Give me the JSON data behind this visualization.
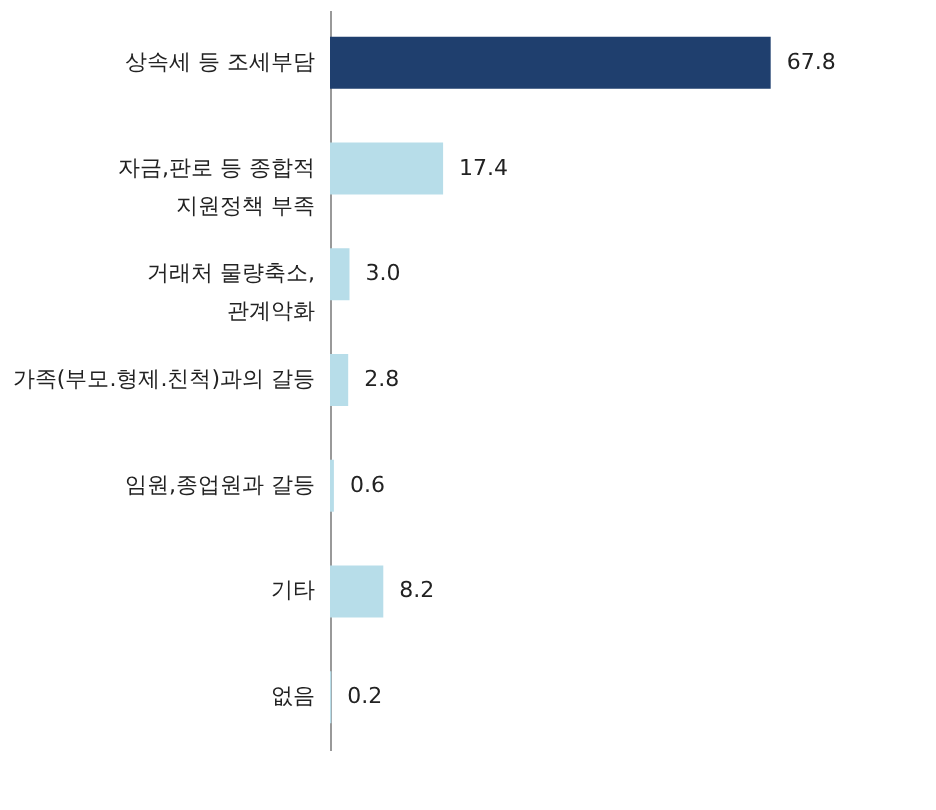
{
  "chart_data": {
    "type": "bar",
    "orientation": "horizontal",
    "categories": [
      "상속세 등 조세부담",
      "자금,판로 등 종합적\n지원정책 부족",
      "거래처 물량축소,\n관계악화",
      "가족(부모.형제.친척)과의 갈등",
      "임원,종업원과 갈등",
      "기타",
      "없음"
    ],
    "values": [
      67.8,
      17.4,
      3.0,
      2.8,
      0.6,
      8.2,
      0.2
    ],
    "value_labels": [
      "67.8",
      "17.4",
      "3.0",
      "2.8",
      "0.6",
      "8.2",
      "0.2"
    ],
    "colors": [
      "#1f3f6e",
      "#b7dde9",
      "#b7dde9",
      "#b7dde9",
      "#b7dde9",
      "#b7dde9",
      "#b7dde9"
    ],
    "grid": false
  }
}
